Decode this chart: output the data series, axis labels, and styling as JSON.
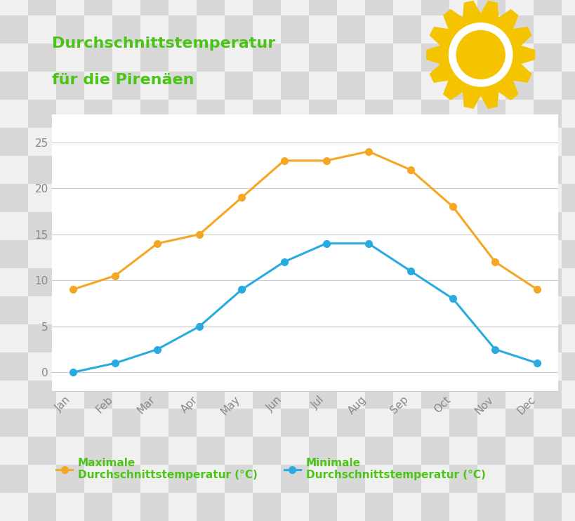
{
  "months": [
    "Jan",
    "Feb",
    "Mar",
    "Apr",
    "May",
    "Jun",
    "Jul",
    "Aug",
    "Sep",
    "Oct",
    "Nov",
    "Dec"
  ],
  "max_temp": [
    9,
    10.5,
    14,
    15,
    19,
    23,
    23,
    24,
    22,
    18,
    12,
    9
  ],
  "min_temp": [
    0,
    1,
    2.5,
    5,
    9,
    12,
    14,
    14,
    11,
    8,
    2.5,
    1
  ],
  "max_color": "#F5A623",
  "min_color": "#29ABE2",
  "title_line1": "Durchschnittstemperatur",
  "title_line2": "für die Pirenäen",
  "legend_max": "Maximale\nDurchschnittstemperatur (°C)",
  "legend_min": "Minimale\nDurchschnittstemperatur (°C)",
  "title_color": "#4CC417",
  "legend_color": "#4CC417",
  "axis_label_color": "#888888",
  "grid_color": "#cccccc",
  "ylim": [
    -2,
    28
  ],
  "yticks": [
    0,
    5,
    10,
    15,
    20,
    25
  ],
  "sun_color": "#F5C400",
  "sun_white": "#ffffff",
  "checker_light": "#f0f0f0",
  "checker_dark": "#d8d8d8",
  "bg_color": "#ffffff",
  "marker_size": 7,
  "line_width": 2.2
}
